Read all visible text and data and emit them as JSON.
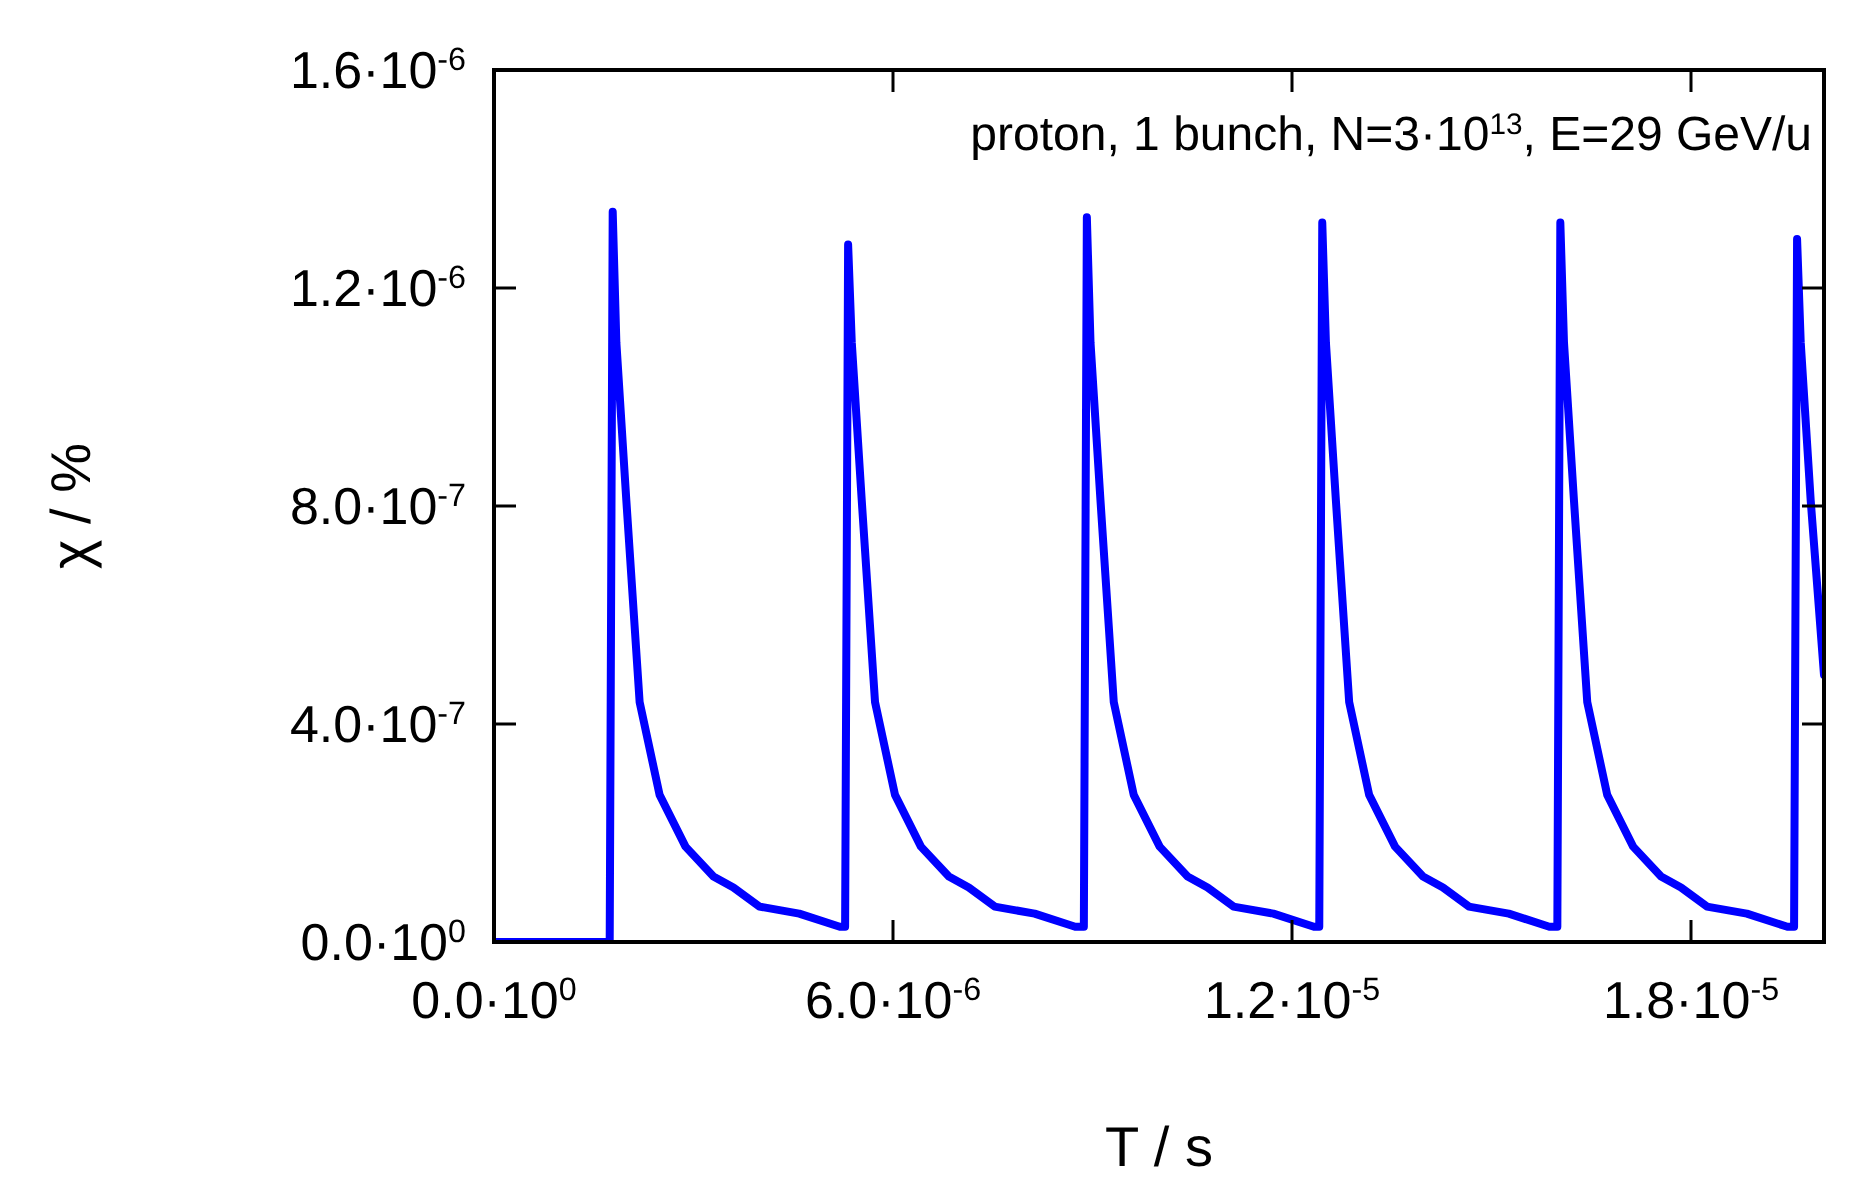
{
  "chart_data": {
    "type": "line",
    "xlabel": "T / s",
    "ylabel": "χ / %",
    "annotations": [
      "proton, 1 bunch, N=3·10$^{13}$, E=29 GeV/u"
    ],
    "xlim": [
      0,
      2e-05
    ],
    "ylim": [
      0,
      1.6e-06
    ],
    "xticks": [
      {
        "value": 0,
        "label": "0.0·10$^{0}$"
      },
      {
        "value": 6e-06,
        "label": "6.0·10$^{-6}$"
      },
      {
        "value": 1.2e-05,
        "label": "1.2·10$^{-5}$"
      },
      {
        "value": 1.8e-05,
        "label": "1.8·10$^{-5}$"
      }
    ],
    "yticks": [
      {
        "value": 0,
        "label": "0.0·10$^{0}$"
      },
      {
        "value": 4e-07,
        "label": "4.0·10$^{-7}$"
      },
      {
        "value": 8e-07,
        "label": "8.0·10$^{-7}$"
      },
      {
        "value": 1.2e-06,
        "label": "1.2·10$^{-6}$"
      },
      {
        "value": 1.6e-06,
        "label": "1.6·10$^{-6}$"
      }
    ],
    "grid": false,
    "marker": "none",
    "line_style": "solid",
    "series": [
      {
        "color": "#0000ff",
        "x": [
          0,
          1.74e-06,
          1.785e-06,
          1.84e-06,
          1.99e-06,
          2.19e-06,
          2.49e-06,
          2.88e-06,
          3.3e-06,
          3.6e-06,
          3.99e-06,
          4.59e-06,
          5.2e-06,
          5.28e-06,
          5.325e-06,
          5.38e-06,
          5.53e-06,
          5.73e-06,
          6.03e-06,
          6.42e-06,
          6.84e-06,
          7.14e-06,
          7.53e-06,
          8.13e-06,
          8.74e-06,
          8.87e-06,
          8.915e-06,
          8.97e-06,
          9.12e-06,
          9.32e-06,
          9.62e-06,
          1.001e-05,
          1.043e-05,
          1.073e-05,
          1.112e-05,
          1.172e-05,
          1.233e-05,
          1.241e-05,
          1.2455e-05,
          1.251e-05,
          1.266e-05,
          1.286e-05,
          1.316e-05,
          1.355e-05,
          1.397e-05,
          1.427e-05,
          1.466e-05,
          1.526e-05,
          1.587e-05,
          1.599e-05,
          1.6035e-05,
          1.609e-05,
          1.624e-05,
          1.644e-05,
          1.674e-05,
          1.713e-05,
          1.755e-05,
          1.785e-05,
          1.824e-05,
          1.884e-05,
          1.945e-05,
          1.955e-05,
          1.9595e-05,
          1.965e-05,
          1.98e-05,
          2e-05
        ],
        "values": [
          0,
          0,
          1.34e-06,
          1.1e-06,
          8.1e-07,
          4.4e-07,
          2.7e-07,
          1.75e-07,
          1.2e-07,
          1e-07,
          6.5e-08,
          5.2e-08,
          2.8e-08,
          2.8e-08,
          1.28e-06,
          1.1e-06,
          8.1e-07,
          4.4e-07,
          2.7e-07,
          1.75e-07,
          1.2e-07,
          1e-07,
          6.5e-08,
          5.2e-08,
          2.8e-08,
          2.8e-08,
          1.33e-06,
          1.1e-06,
          8.1e-07,
          4.4e-07,
          2.7e-07,
          1.75e-07,
          1.2e-07,
          1e-07,
          6.5e-08,
          5.2e-08,
          2.8e-08,
          2.8e-08,
          1.32e-06,
          1.1e-06,
          8.1e-07,
          4.4e-07,
          2.7e-07,
          1.75e-07,
          1.2e-07,
          1e-07,
          6.5e-08,
          5.2e-08,
          2.8e-08,
          2.8e-08,
          1.32e-06,
          1.1e-06,
          8.1e-07,
          4.4e-07,
          2.7e-07,
          1.75e-07,
          1.2e-07,
          1e-07,
          6.5e-08,
          5.2e-08,
          2.8e-08,
          2.8e-08,
          1.29e-06,
          1.1e-06,
          8.1e-07,
          4.9e-07
        ]
      }
    ]
  }
}
